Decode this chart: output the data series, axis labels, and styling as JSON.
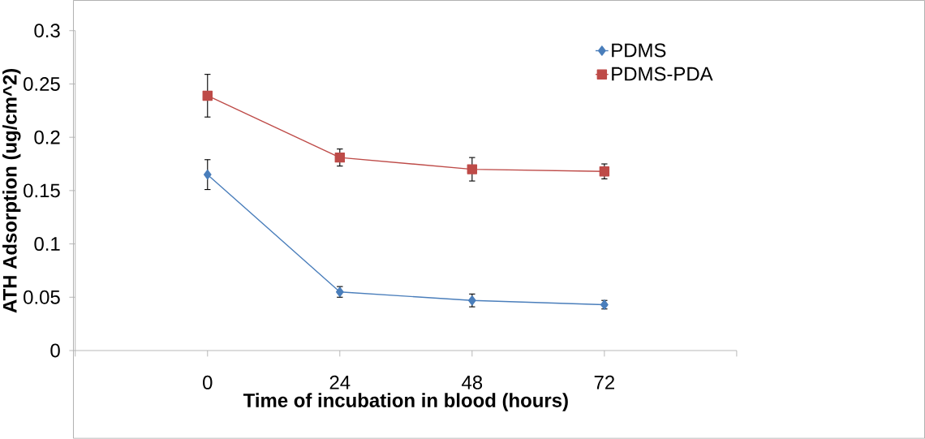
{
  "chart_data": {
    "type": "line",
    "xlabel": "Time of incubation in blood (hours)",
    "ylabel": "ATH Adsorption (ug/cm^2)",
    "x": [
      0,
      24,
      48,
      72
    ],
    "series": [
      {
        "name": "PDMS",
        "color": "#4a7ebb",
        "marker": "diamond",
        "values": [
          0.165,
          0.055,
          0.047,
          0.043
        ],
        "errors": [
          0.014,
          0.005,
          0.006,
          0.004
        ]
      },
      {
        "name": "PDMS-PDA",
        "color": "#be4b48",
        "marker": "square",
        "values": [
          0.239,
          0.181,
          0.17,
          0.168
        ],
        "errors": [
          0.02,
          0.008,
          0.011,
          0.007
        ]
      }
    ],
    "xlim": [
      -24,
      96
    ],
    "xticks": [
      {
        "value": -24,
        "label": null
      },
      0,
      24,
      48,
      72,
      {
        "value": 96,
        "label": null
      }
    ],
    "ylim": [
      0,
      0.3
    ],
    "yticks": [
      0,
      0.05,
      0.1,
      0.15,
      0.2,
      0.25,
      0.3
    ],
    "grid": false,
    "legend": "top right"
  }
}
